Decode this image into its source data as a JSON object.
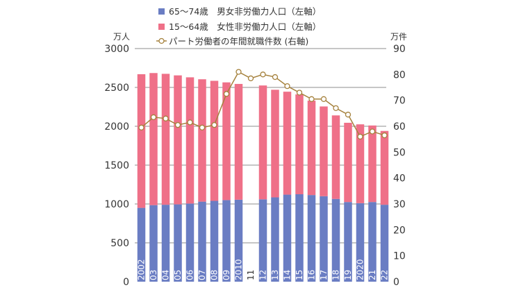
{
  "chart_data": {
    "type": "bar",
    "stacked": true,
    "categories": [
      "2002",
      "03",
      "04",
      "05",
      "06",
      "07",
      "08",
      "09",
      "2010",
      "11",
      "12",
      "13",
      "14",
      "15",
      "16",
      "17",
      "18",
      "19",
      "2020",
      "21",
      "22"
    ],
    "series": [
      {
        "name": "65～74歳　男女非労働力人口（左軸）",
        "type": "bar",
        "axis": "left",
        "color": "#6a7dc3",
        "values": [
          950,
          985,
          990,
          995,
          1005,
          1030,
          1040,
          1050,
          1055,
          null,
          1060,
          1085,
          1120,
          1125,
          1115,
          1100,
          1065,
          1025,
          1010,
          1025,
          990
        ]
      },
      {
        "name": "15～64歳　女性非労働力人口（左軸）",
        "type": "bar",
        "axis": "left",
        "color": "#ef7088",
        "values": [
          1720,
          1700,
          1685,
          1660,
          1625,
          1575,
          1545,
          1515,
          1490,
          null,
          1465,
          1385,
          1325,
          1285,
          1215,
          1155,
          1075,
          1020,
          1015,
          985,
          950
        ]
      },
      {
        "name": "パート労働者の年間就職件数 (右軸)",
        "type": "line",
        "axis": "right",
        "color": "#a5813c",
        "values": [
          59.5,
          63.5,
          63,
          60.5,
          61.5,
          59.5,
          60.5,
          72.5,
          81,
          78.5,
          80,
          79,
          75.5,
          73,
          70.5,
          70.5,
          67,
          64.5,
          56,
          58,
          56.5
        ]
      }
    ],
    "y_left": {
      "unit": "万人",
      "min": 0,
      "max": 3000,
      "ticks": [
        "0",
        "500",
        "1000",
        "1500",
        "2000",
        "2500",
        "3000"
      ]
    },
    "y_right": {
      "unit": "万件",
      "min": 0,
      "max": 90,
      "ticks": [
        "0",
        "10",
        "20",
        "30",
        "40",
        "50",
        "60",
        "70",
        "80",
        "90"
      ]
    },
    "grid": true,
    "legend": "top"
  }
}
